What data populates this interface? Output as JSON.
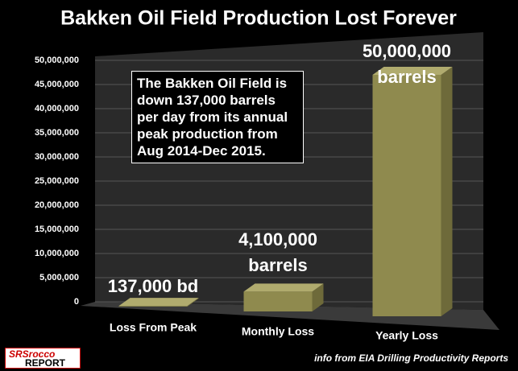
{
  "chart_data": {
    "type": "bar3d",
    "title": "Bakken Oil Field Production Lost Forever",
    "categories": [
      "Loss From Peak",
      "Monthly Loss",
      "Yearly Loss"
    ],
    "values": [
      137000,
      4100000,
      50000000
    ],
    "value_labels": [
      "137,000 bd",
      "4,100,000 barrels",
      "50,000,000 barrels"
    ],
    "color": "#8f8a4e",
    "ylim": [
      0,
      50000000
    ],
    "yticks": [
      {
        "value": 0,
        "label": "0"
      },
      {
        "value": 5000000,
        "label": "5,000,000"
      },
      {
        "value": 10000000,
        "label": "10,000,000"
      },
      {
        "value": 15000000,
        "label": "15,000,000"
      },
      {
        "value": 20000000,
        "label": "20,000,000"
      },
      {
        "value": 25000000,
        "label": "25,000,000"
      },
      {
        "value": 30000000,
        "label": "30,000,000"
      },
      {
        "value": 35000000,
        "label": "35,000,000"
      },
      {
        "value": 40000000,
        "label": "40,000,000"
      },
      {
        "value": 45000000,
        "label": "45,000,000"
      },
      {
        "value": 50000000,
        "label": "50,000,000"
      }
    ],
    "grid": true,
    "annotation": "The Bakken Oil Field is down 137,000 barrels per day from its annual peak production from Aug 2014-Dec 2015.",
    "source": "info from EIA Drilling Productivity Reports",
    "logo": {
      "mark": "SRSrocco",
      "sub": "REPORT"
    }
  }
}
